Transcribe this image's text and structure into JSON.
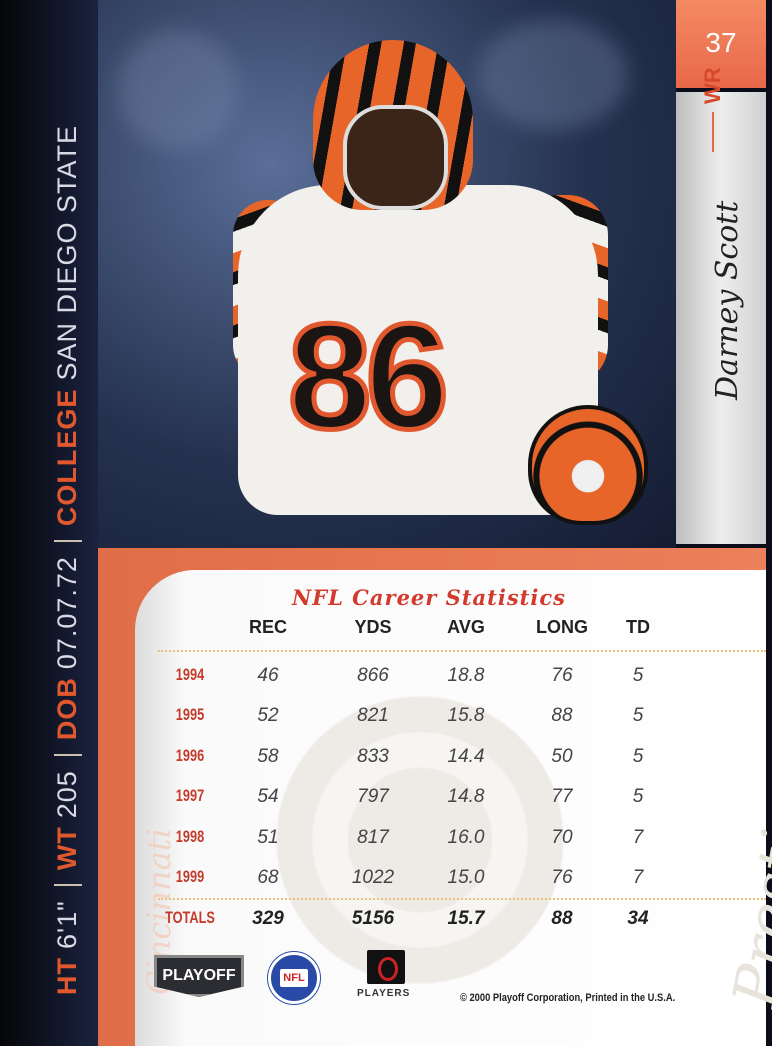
{
  "card": {
    "number": "37",
    "position": "WR",
    "player_name": "Darney Scott",
    "team": "Cincinnati",
    "jersey_number": "86",
    "brand_watermark": "Prestige"
  },
  "bio": {
    "ht_label": "HT",
    "ht": "6'1\"",
    "wt_label": "WT",
    "wt": "205",
    "dob_label": "DOB",
    "dob": "07.07.72",
    "college_label": "COLLEGE",
    "college": "SAN DIEGO STATE"
  },
  "stats": {
    "title": "NFL Career Statistics",
    "headers": [
      "REC",
      "YDS",
      "AVG",
      "LONG",
      "TD"
    ],
    "rows": [
      {
        "year": "1994",
        "rec": "46",
        "yds": "866",
        "avg": "18.8",
        "long": "76",
        "td": "5"
      },
      {
        "year": "1995",
        "rec": "52",
        "yds": "821",
        "avg": "15.8",
        "long": "88",
        "td": "5"
      },
      {
        "year": "1996",
        "rec": "58",
        "yds": "833",
        "avg": "14.4",
        "long": "50",
        "td": "5"
      },
      {
        "year": "1997",
        "rec": "54",
        "yds": "797",
        "avg": "14.8",
        "long": "77",
        "td": "5"
      },
      {
        "year": "1998",
        "rec": "51",
        "yds": "817",
        "avg": "16.0",
        "long": "70",
        "td": "7"
      },
      {
        "year": "1999",
        "rec": "68",
        "yds": "1022",
        "avg": "15.0",
        "long": "76",
        "td": "7"
      }
    ],
    "totals": {
      "label": "TOTALS",
      "rec": "329",
      "yds": "5156",
      "avg": "15.7",
      "long": "88",
      "td": "34"
    }
  },
  "footer": {
    "playoff_logo": "PLAYOFF",
    "nfl_logo": "NFL",
    "players_logo": "PLAYERS",
    "copyright": "© 2000 Playoff Corporation, Printed in the U.S.A."
  },
  "colors": {
    "accent": "#e8684a",
    "navy": "#141a30",
    "year_red": "#c53a2a"
  }
}
